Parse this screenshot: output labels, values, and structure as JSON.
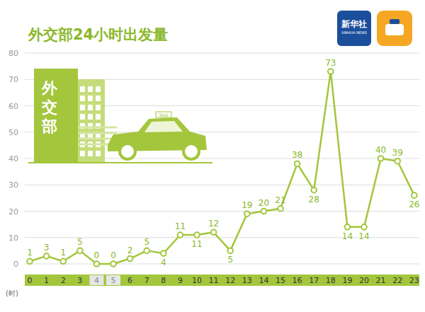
{
  "chart_data": {
    "type": "line",
    "title": "外交部24小时出发量",
    "categories": [
      "0",
      "1",
      "2",
      "3",
      "4",
      "5",
      "6",
      "7",
      "8",
      "9",
      "10",
      "11",
      "12",
      "13",
      "14",
      "15",
      "16",
      "17",
      "18",
      "19",
      "20",
      "21",
      "22",
      "23"
    ],
    "values": [
      1,
      3,
      1,
      5,
      0,
      0,
      2,
      5,
      4,
      11,
      11,
      12,
      5,
      19,
      20,
      21,
      38,
      28,
      73,
      14,
      14,
      40,
      39,
      26
    ],
    "x_label": "(时)",
    "ylim": [
      0,
      80
    ],
    "yticks": [
      0,
      10,
      20,
      30,
      40,
      50,
      60,
      70,
      80
    ],
    "grid": true,
    "data_labels": true,
    "color": "#a3c63c",
    "marker": "circle",
    "annotations": [
      "外交部",
      "TAXI",
      "新华社",
      "XINHUA NEWS"
    ]
  }
}
